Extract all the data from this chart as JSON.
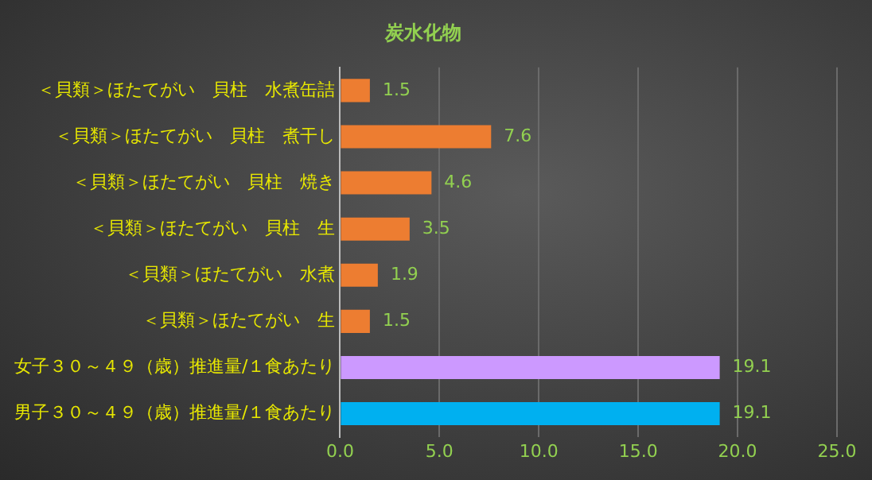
{
  "chart_data": {
    "type": "bar",
    "orientation": "horizontal",
    "title": "炭水化物",
    "categories": [
      "＜貝類＞ほたてがい　貝柱　水煮缶詰",
      "＜貝類＞ほたてがい　貝柱　煮干し",
      "＜貝類＞ほたてがい　貝柱　焼き",
      "＜貝類＞ほたてがい　貝柱　生",
      "＜貝類＞ほたてがい　水煮",
      "＜貝類＞ほたてがい　生",
      "女子３０～４９（歳）推進量/１食あたり",
      "男子３０～４９（歳）推進量/１食あたり"
    ],
    "values": [
      1.5,
      7.6,
      4.6,
      3.5,
      1.9,
      1.5,
      19.1,
      19.1
    ],
    "colors": [
      "#ed7d31",
      "#ed7d31",
      "#ed7d31",
      "#ed7d31",
      "#ed7d31",
      "#ed7d31",
      "#cc99ff",
      "#00b0f0"
    ],
    "xlim": [
      0,
      25
    ],
    "xticks": [
      {
        "value": 0,
        "label": "0.0"
      },
      {
        "value": 5,
        "label": "5.0"
      },
      {
        "value": 10,
        "label": "10.0"
      },
      {
        "value": 15,
        "label": "15.0"
      },
      {
        "value": 20,
        "label": "20.0"
      },
      {
        "value": 25,
        "label": "25.0"
      }
    ],
    "grid": "x",
    "data_labels": true,
    "legend": false
  }
}
